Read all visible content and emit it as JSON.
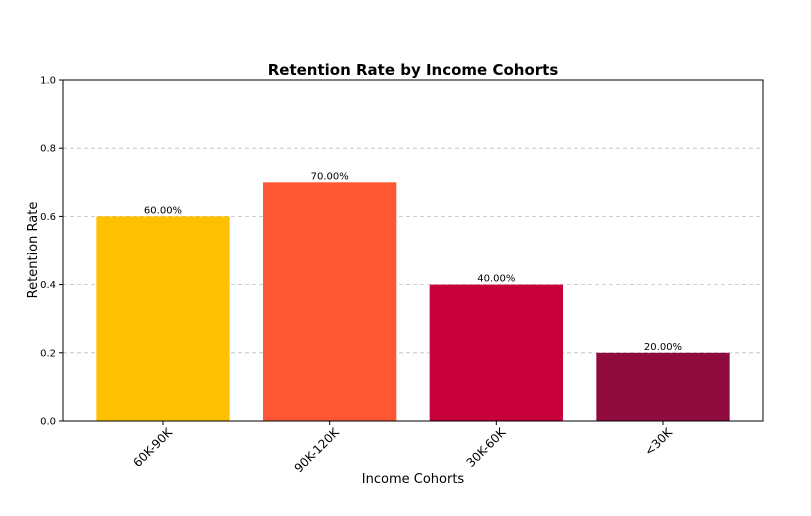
{
  "chart_data": {
    "type": "bar",
    "title": "Retention Rate by Income Cohorts",
    "xlabel": "Income Cohorts",
    "ylabel": "Retention Rate",
    "categories": [
      "60K-90K",
      "90K-120K",
      "30K-60K",
      "<30K"
    ],
    "values": [
      0.6,
      0.7,
      0.4,
      0.2
    ],
    "data_labels": [
      "60.00%",
      "70.00%",
      "40.00%",
      "20.00%"
    ],
    "colors": [
      "#FFC000",
      "#FF5733",
      "#C70039",
      "#900C3F"
    ],
    "ylim": [
      0,
      1.0
    ],
    "yticks": [
      0.0,
      0.2,
      0.4,
      0.6,
      0.8,
      1.0
    ],
    "ytick_labels": [
      "0.0",
      "0.2",
      "0.4",
      "0.6",
      "0.8",
      "1.0"
    ],
    "grid": "y-dashed",
    "legend": "none"
  }
}
